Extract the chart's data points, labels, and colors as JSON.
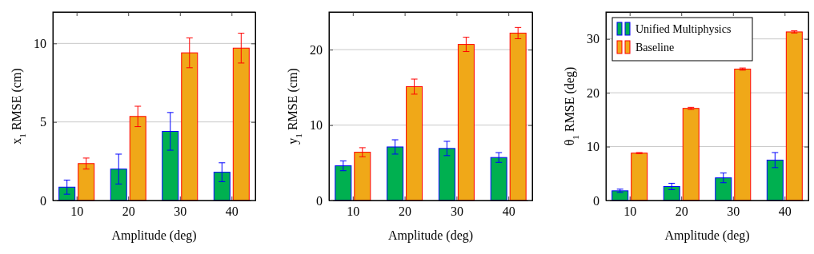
{
  "chart_data": [
    {
      "type": "bar",
      "categories": [
        "10",
        "20",
        "30",
        "40"
      ],
      "xlabel": "Amplitude (deg)",
      "ylabel": "x$_{1}$ RMSE (cm)",
      "ylim": [
        0,
        12
      ],
      "yticks": [
        0,
        5,
        10
      ],
      "grid": "y",
      "legend": false,
      "series": [
        {
          "color": "#00b050",
          "values": [
            0.85,
            2.0,
            4.4,
            1.8
          ],
          "errors": [
            0.45,
            0.95,
            1.2,
            0.6
          ]
        },
        {
          "color": "#f0a818",
          "values": [
            2.35,
            5.35,
            9.4,
            9.7
          ],
          "errors": [
            0.35,
            0.65,
            0.95,
            0.95
          ]
        }
      ]
    },
    {
      "type": "bar",
      "categories": [
        "10",
        "20",
        "30",
        "40"
      ],
      "xlabel": "Amplitude (deg)",
      "ylabel": "y$_{1}$ RMSE (cm)",
      "ylim": [
        0,
        25
      ],
      "yticks": [
        0,
        10,
        20
      ],
      "grid": "y",
      "legend": false,
      "series": [
        {
          "color": "#00b050",
          "values": [
            4.6,
            7.1,
            6.9,
            5.7
          ],
          "errors": [
            0.65,
            0.95,
            0.95,
            0.65
          ]
        },
        {
          "color": "#f0a818",
          "values": [
            6.4,
            15.1,
            20.7,
            22.2
          ],
          "errors": [
            0.6,
            1.0,
            0.95,
            0.75
          ]
        }
      ]
    },
    {
      "type": "bar",
      "categories": [
        "10",
        "20",
        "30",
        "40"
      ],
      "xlabel": "Amplitude (deg)",
      "ylabel": "θ$_{1}$ RMSE (deg)",
      "ylim": [
        0,
        35
      ],
      "yticks": [
        0,
        10,
        20,
        30
      ],
      "grid": "y",
      "legend": "top left",
      "series": [
        {
          "name": "Unified Multiphysics",
          "color": "#00b050",
          "values": [
            1.8,
            2.6,
            4.2,
            7.5
          ],
          "errors": [
            0.3,
            0.6,
            0.9,
            1.4
          ]
        },
        {
          "name": "Baseline",
          "color": "#f0a818",
          "values": [
            8.8,
            17.1,
            24.4,
            31.3
          ],
          "errors": [
            0.1,
            0.2,
            0.2,
            0.2
          ]
        }
      ]
    }
  ]
}
